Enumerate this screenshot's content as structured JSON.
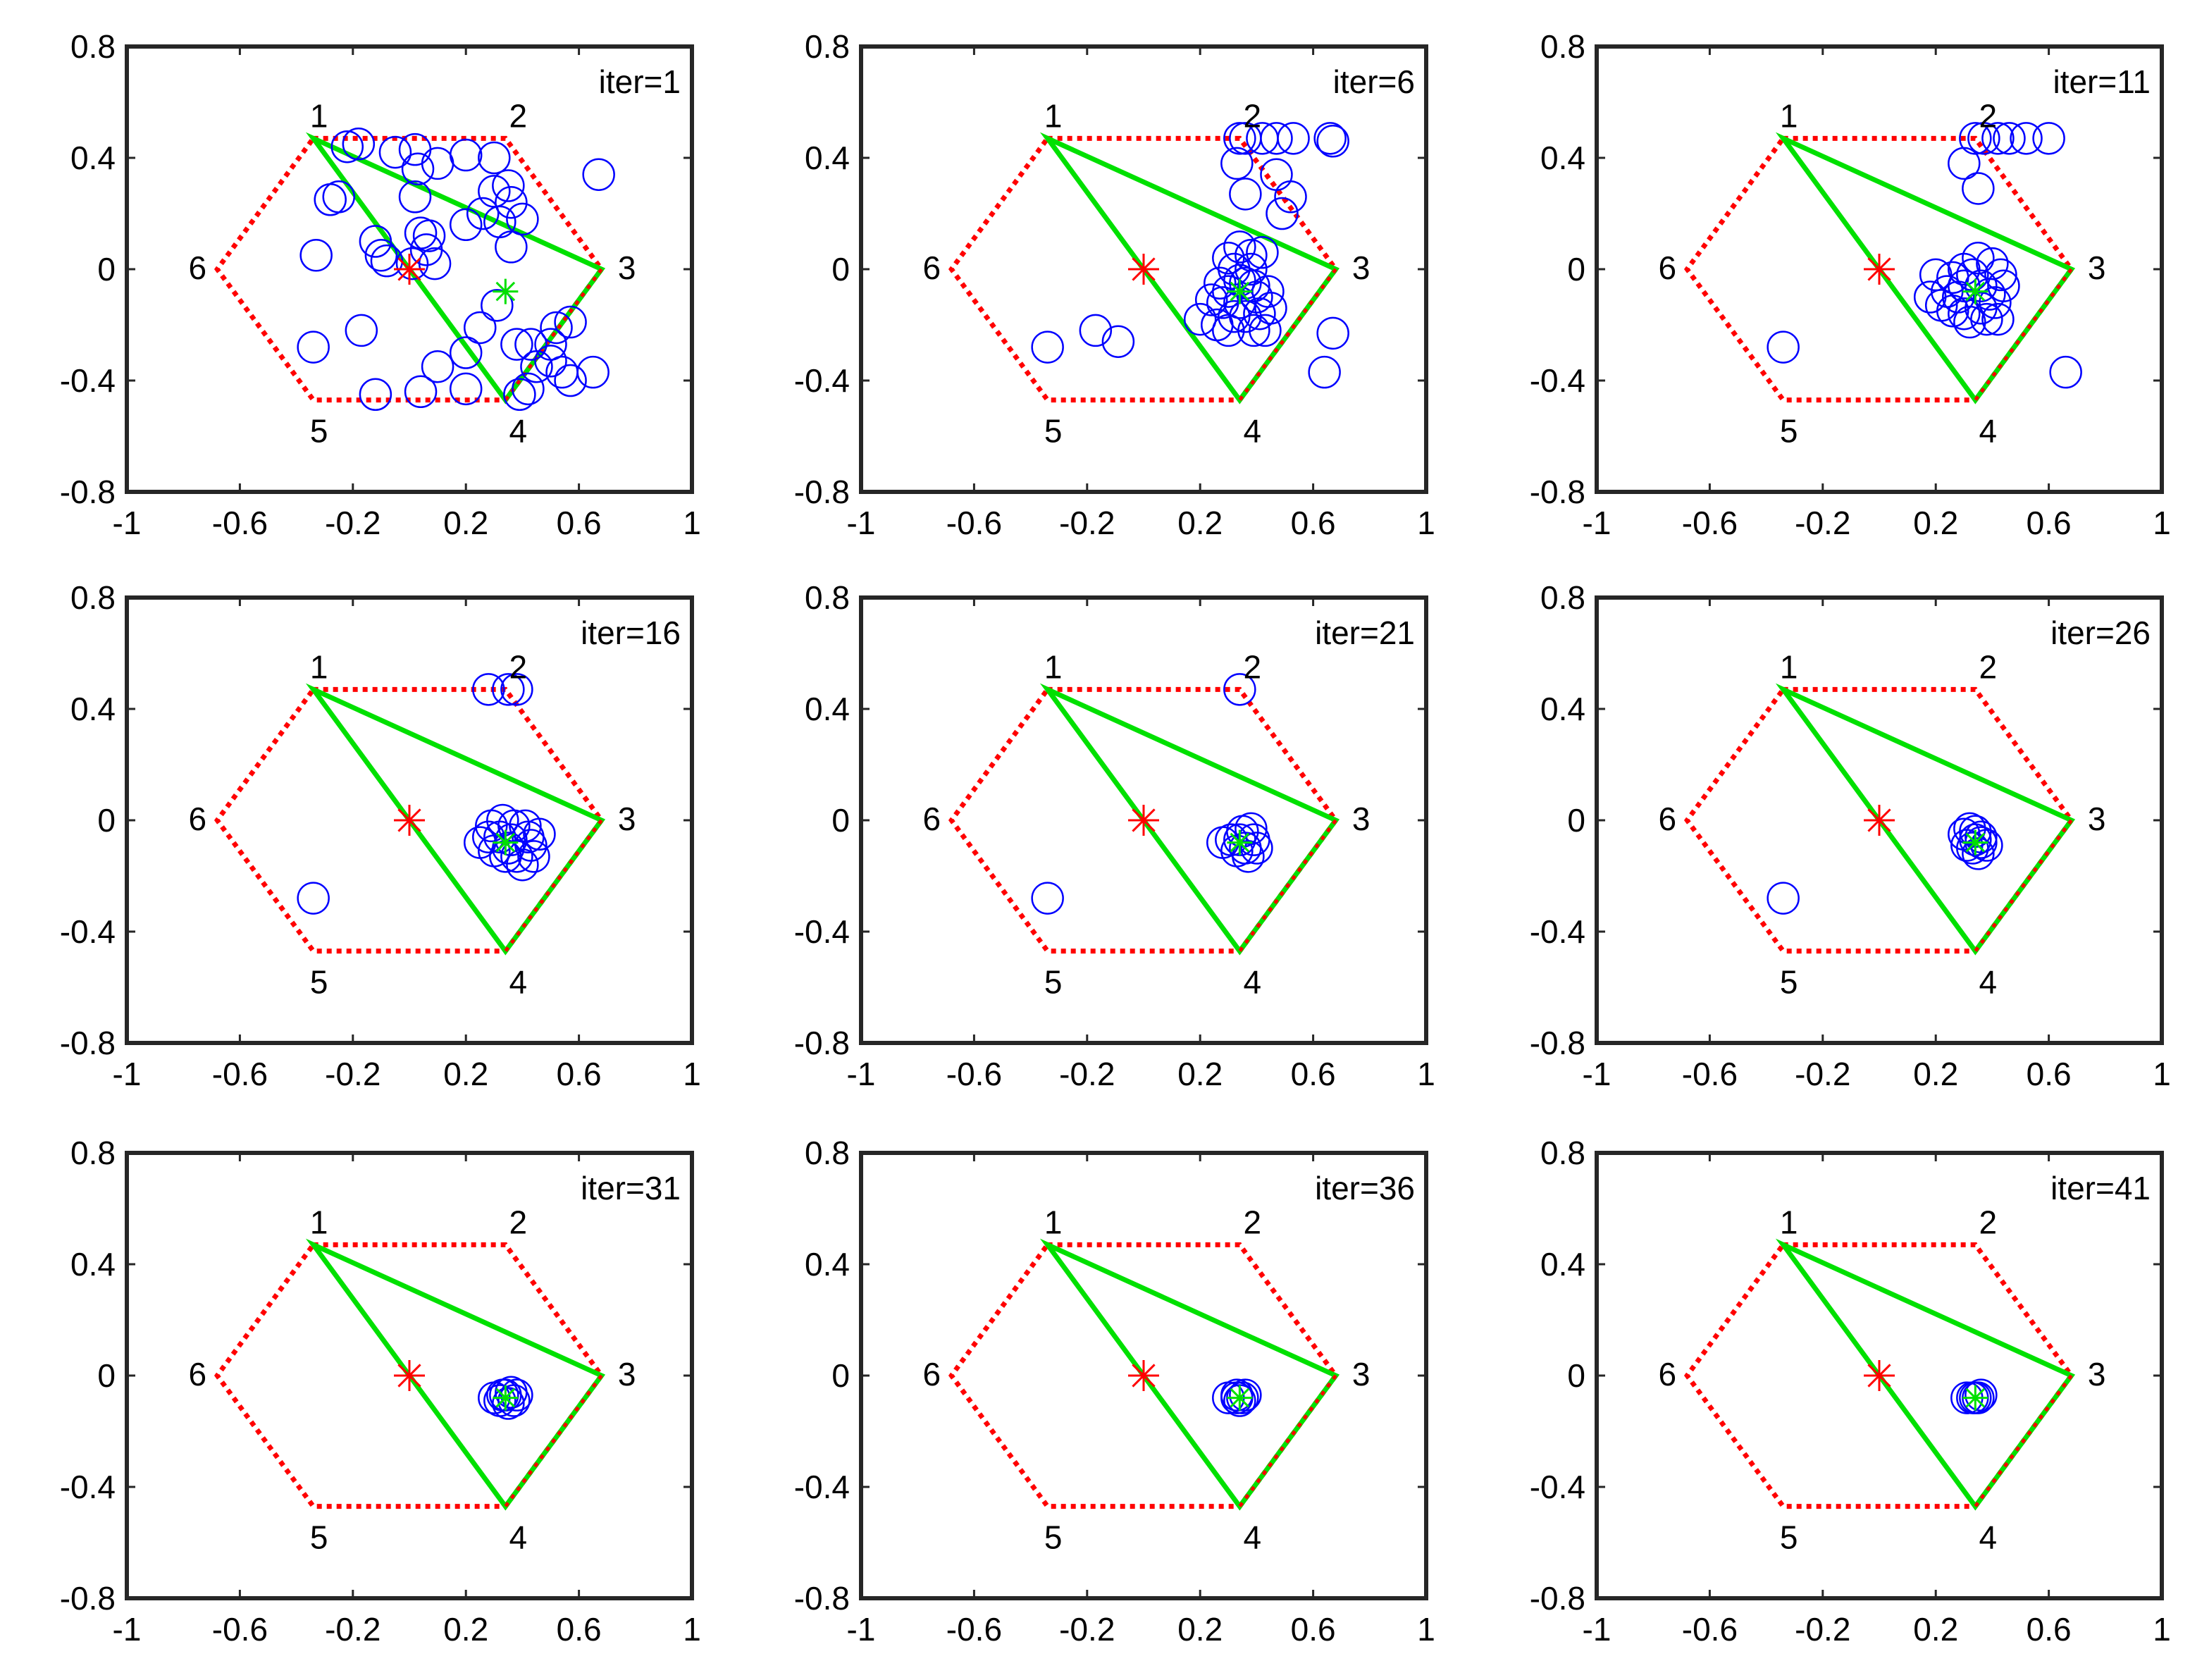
{
  "chart_data": {
    "type": "scatter",
    "grid": false,
    "layout": "3x3 grid of panels",
    "xlim": [
      -1,
      1
    ],
    "ylim": [
      -0.8,
      0.8
    ],
    "xticks": [
      -1,
      -0.6,
      -0.2,
      0.2,
      0.6,
      1
    ],
    "yticks": [
      -0.8,
      -0.4,
      0,
      0.4,
      0.8
    ],
    "xtick_labels": [
      "-1",
      "-0.6",
      "-0.2",
      "0.2",
      "0.6",
      "1"
    ],
    "ytick_labels": [
      "-0.8",
      "-0.4",
      "0",
      "0.4",
      "0.8"
    ],
    "colors": {
      "hexagon": "#ff0000",
      "triangle": "#00e000",
      "particles": "#0000ff",
      "center_star": "#ff0000",
      "target_star": "#00e000",
      "axes": "#262626"
    },
    "hexagon": {
      "vertices": [
        {
          "label": "1",
          "x": -0.34,
          "y": 0.47
        },
        {
          "label": "2",
          "x": 0.34,
          "y": 0.47
        },
        {
          "label": "3",
          "x": 0.68,
          "y": 0.0
        },
        {
          "label": "4",
          "x": 0.34,
          "y": -0.47
        },
        {
          "label": "5",
          "x": -0.34,
          "y": -0.47
        },
        {
          "label": "6",
          "x": -0.68,
          "y": 0.0
        }
      ]
    },
    "triangle_vertices": [
      1,
      3,
      4
    ],
    "center_marker": {
      "x": 0.0,
      "y": 0.0
    },
    "target_marker": {
      "x": 0.34,
      "y": -0.08
    },
    "panels": [
      {
        "label": "iter=1",
        "points": [
          [
            -0.22,
            0.44
          ],
          [
            -0.18,
            0.45
          ],
          [
            -0.05,
            0.42
          ],
          [
            0.02,
            0.43
          ],
          [
            0.1,
            0.38
          ],
          [
            0.03,
            0.36
          ],
          [
            0.2,
            0.41
          ],
          [
            0.3,
            0.4
          ],
          [
            0.3,
            0.28
          ],
          [
            0.35,
            0.3
          ],
          [
            0.36,
            0.24
          ],
          [
            -0.28,
            0.25
          ],
          [
            -0.25,
            0.26
          ],
          [
            0.02,
            0.26
          ],
          [
            -0.12,
            0.1
          ],
          [
            -0.1,
            0.05
          ],
          [
            -0.08,
            0.03
          ],
          [
            0.04,
            0.13
          ],
          [
            0.07,
            0.12
          ],
          [
            0.06,
            0.07
          ],
          [
            0.01,
            0.02
          ],
          [
            0.09,
            0.02
          ],
          [
            0.2,
            0.16
          ],
          [
            0.26,
            0.2
          ],
          [
            0.32,
            0.17
          ],
          [
            0.4,
            0.18
          ],
          [
            0.36,
            0.08
          ],
          [
            -0.33,
            0.05
          ],
          [
            0.31,
            -0.13
          ],
          [
            0.38,
            -0.27
          ],
          [
            0.43,
            -0.27
          ],
          [
            0.5,
            -0.27
          ],
          [
            0.52,
            -0.21
          ],
          [
            0.57,
            -0.19
          ],
          [
            0.5,
            -0.33
          ],
          [
            0.54,
            -0.37
          ],
          [
            0.57,
            -0.4
          ],
          [
            0.65,
            -0.37
          ],
          [
            0.45,
            -0.35
          ],
          [
            0.42,
            -0.43
          ],
          [
            0.39,
            -0.45
          ],
          [
            0.2,
            -0.3
          ],
          [
            0.1,
            -0.35
          ],
          [
            0.2,
            -0.43
          ],
          [
            0.04,
            -0.44
          ],
          [
            -0.12,
            -0.45
          ],
          [
            -0.17,
            -0.22
          ],
          [
            -0.34,
            -0.28
          ],
          [
            0.67,
            0.34
          ],
          [
            0.25,
            -0.21
          ]
        ]
      },
      {
        "label": "iter=6",
        "points": [
          [
            0.34,
            0.47
          ],
          [
            0.36,
            0.47
          ],
          [
            0.42,
            0.47
          ],
          [
            0.47,
            0.47
          ],
          [
            0.53,
            0.47
          ],
          [
            0.66,
            0.47
          ],
          [
            0.67,
            0.46
          ],
          [
            0.33,
            0.38
          ],
          [
            0.47,
            0.34
          ],
          [
            0.52,
            0.26
          ],
          [
            0.49,
            0.2
          ],
          [
            0.36,
            0.27
          ],
          [
            0.34,
            0.08
          ],
          [
            0.3,
            0.04
          ],
          [
            0.38,
            0.05
          ],
          [
            0.36,
            -0.05
          ],
          [
            0.3,
            -0.08
          ],
          [
            0.34,
            -0.12
          ],
          [
            0.4,
            -0.1
          ],
          [
            0.44,
            -0.08
          ],
          [
            0.28,
            -0.12
          ],
          [
            0.32,
            -0.17
          ],
          [
            0.36,
            -0.17
          ],
          [
            0.41,
            -0.16
          ],
          [
            0.45,
            -0.14
          ],
          [
            0.27,
            -0.05
          ],
          [
            0.24,
            -0.11
          ],
          [
            0.2,
            -0.18
          ],
          [
            0.26,
            -0.2
          ],
          [
            0.3,
            -0.22
          ],
          [
            0.39,
            -0.22
          ],
          [
            0.43,
            -0.22
          ],
          [
            0.38,
            0.0
          ],
          [
            0.32,
            0.0
          ],
          [
            0.39,
            -0.06
          ],
          [
            0.34,
            -0.04
          ],
          [
            -0.34,
            -0.28
          ],
          [
            -0.17,
            -0.22
          ],
          [
            -0.09,
            -0.26
          ],
          [
            0.67,
            -0.23
          ],
          [
            0.64,
            -0.37
          ],
          [
            0.42,
            0.06
          ]
        ]
      },
      {
        "label": "iter=11",
        "points": [
          [
            0.34,
            0.47
          ],
          [
            0.37,
            0.47
          ],
          [
            0.42,
            0.47
          ],
          [
            0.46,
            0.47
          ],
          [
            0.52,
            0.47
          ],
          [
            0.6,
            0.47
          ],
          [
            0.3,
            0.38
          ],
          [
            0.35,
            0.29
          ],
          [
            0.35,
            0.04
          ],
          [
            0.4,
            0.02
          ],
          [
            0.43,
            -0.02
          ],
          [
            0.3,
            0.0
          ],
          [
            0.26,
            -0.03
          ],
          [
            0.2,
            -0.02
          ],
          [
            0.24,
            -0.08
          ],
          [
            0.18,
            -0.1
          ],
          [
            0.22,
            -0.13
          ],
          [
            0.28,
            -0.1
          ],
          [
            0.3,
            -0.16
          ],
          [
            0.36,
            -0.14
          ],
          [
            0.41,
            -0.12
          ],
          [
            0.44,
            -0.06
          ],
          [
            0.38,
            -0.18
          ],
          [
            0.42,
            -0.18
          ],
          [
            0.32,
            -0.19
          ],
          [
            0.26,
            -0.15
          ],
          [
            0.36,
            -0.06
          ],
          [
            0.3,
            -0.06
          ],
          [
            0.39,
            -0.09
          ],
          [
            0.33,
            -0.02
          ],
          [
            -0.34,
            -0.28
          ],
          [
            0.66,
            -0.37
          ]
        ]
      },
      {
        "label": "iter=16",
        "points": [
          [
            0.28,
            0.47
          ],
          [
            0.35,
            0.47
          ],
          [
            0.38,
            0.47
          ],
          [
            0.33,
            0.0
          ],
          [
            0.37,
            -0.02
          ],
          [
            0.41,
            -0.02
          ],
          [
            0.28,
            -0.06
          ],
          [
            0.25,
            -0.08
          ],
          [
            0.3,
            -0.11
          ],
          [
            0.34,
            -0.13
          ],
          [
            0.38,
            -0.13
          ],
          [
            0.43,
            -0.09
          ],
          [
            0.46,
            -0.05
          ],
          [
            0.44,
            -0.13
          ],
          [
            0.4,
            -0.16
          ],
          [
            0.32,
            -0.06
          ],
          [
            0.36,
            -0.07
          ],
          [
            0.29,
            -0.02
          ],
          [
            0.42,
            -0.06
          ],
          [
            0.35,
            -0.1
          ],
          [
            -0.34,
            -0.28
          ]
        ]
      },
      {
        "label": "iter=21",
        "points": [
          [
            0.34,
            0.47
          ],
          [
            0.31,
            -0.07
          ],
          [
            0.35,
            -0.04
          ],
          [
            0.38,
            -0.03
          ],
          [
            0.39,
            -0.07
          ],
          [
            0.36,
            -0.1
          ],
          [
            0.33,
            -0.11
          ],
          [
            0.37,
            -0.13
          ],
          [
            0.4,
            -0.1
          ],
          [
            0.28,
            -0.08
          ],
          [
            0.34,
            -0.07
          ],
          [
            -0.34,
            -0.28
          ]
        ]
      },
      {
        "label": "iter=26",
        "points": [
          [
            0.3,
            -0.05
          ],
          [
            0.32,
            -0.03
          ],
          [
            0.34,
            -0.04
          ],
          [
            0.36,
            -0.06
          ],
          [
            0.33,
            -0.1
          ],
          [
            0.35,
            -0.12
          ],
          [
            0.38,
            -0.09
          ],
          [
            0.31,
            -0.09
          ],
          [
            0.36,
            -0.08
          ],
          [
            0.34,
            -0.07
          ],
          [
            -0.34,
            -0.28
          ]
        ]
      },
      {
        "label": "iter=31",
        "points": [
          [
            0.3,
            -0.08
          ],
          [
            0.33,
            -0.07
          ],
          [
            0.36,
            -0.06
          ],
          [
            0.38,
            -0.07
          ],
          [
            0.35,
            -0.1
          ],
          [
            0.37,
            -0.09
          ],
          [
            0.32,
            -0.09
          ],
          [
            0.34,
            -0.07
          ]
        ]
      },
      {
        "label": "iter=36",
        "points": [
          [
            0.3,
            -0.08
          ],
          [
            0.33,
            -0.07
          ],
          [
            0.35,
            -0.08
          ],
          [
            0.36,
            -0.07
          ],
          [
            0.34,
            -0.09
          ],
          [
            0.33,
            -0.08
          ]
        ]
      },
      {
        "label": "iter=41",
        "points": [
          [
            0.31,
            -0.08
          ],
          [
            0.33,
            -0.08
          ],
          [
            0.35,
            -0.08
          ],
          [
            0.36,
            -0.07
          ],
          [
            0.34,
            -0.08
          ]
        ]
      }
    ]
  }
}
